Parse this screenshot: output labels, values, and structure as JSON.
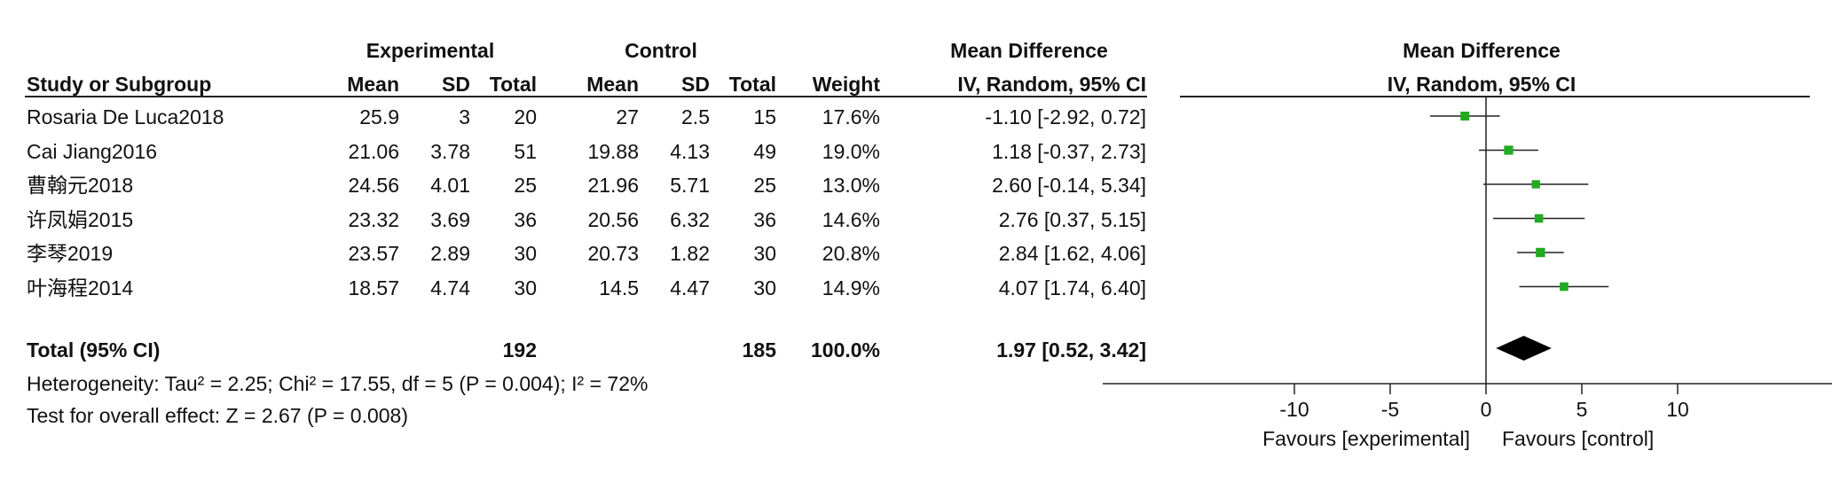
{
  "header": {
    "experimental": "Experimental",
    "control": "Control",
    "mean_difference": "Mean Difference",
    "study_or_subgroup": "Study or Subgroup",
    "mean": "Mean",
    "sd": "SD",
    "total": "Total",
    "weight": "Weight",
    "iv_random": "IV, Random, 95% CI",
    "plot_mean_difference": "Mean Difference",
    "plot_iv_random": "IV, Random, 95% CI"
  },
  "studies": [
    {
      "name": "Rosaria De Luca2018",
      "e_mean": "25.9",
      "e_sd": "3",
      "e_total": "20",
      "c_mean": "27",
      "c_sd": "2.5",
      "c_total": "15",
      "weight": "17.6%",
      "ci": "-1.10 [-2.92, 0.72]"
    },
    {
      "name": "Cai Jiang2016",
      "e_mean": "21.06",
      "e_sd": "3.78",
      "e_total": "51",
      "c_mean": "19.88",
      "c_sd": "4.13",
      "c_total": "49",
      "weight": "19.0%",
      "ci": "1.18 [-0.37, 2.73]"
    },
    {
      "name": "曹翰元2018",
      "e_mean": "24.56",
      "e_sd": "4.01",
      "e_total": "25",
      "c_mean": "21.96",
      "c_sd": "5.71",
      "c_total": "25",
      "weight": "13.0%",
      "ci": "2.60 [-0.14, 5.34]"
    },
    {
      "name": "许凤娟2015",
      "e_mean": "23.32",
      "e_sd": "3.69",
      "e_total": "36",
      "c_mean": "20.56",
      "c_sd": "6.32",
      "c_total": "36",
      "weight": "14.6%",
      "ci": "2.76 [0.37, 5.15]"
    },
    {
      "name": "李琴2019",
      "e_mean": "23.57",
      "e_sd": "2.89",
      "e_total": "30",
      "c_mean": "20.73",
      "c_sd": "1.82",
      "c_total": "30",
      "weight": "20.8%",
      "ci": "2.84 [1.62, 4.06]"
    },
    {
      "name": "叶海程2014",
      "e_mean": "18.57",
      "e_sd": "4.74",
      "e_total": "30",
      "c_mean": "14.5",
      "c_sd": "4.47",
      "c_total": "30",
      "weight": "14.9%",
      "ci": "4.07 [1.74, 6.40]"
    }
  ],
  "total": {
    "label": "Total (95% CI)",
    "e_total": "192",
    "c_total": "185",
    "weight": "100.0%",
    "ci": "1.97 [0.52, 3.42]"
  },
  "heterogeneity": "Heterogeneity: Tau² = 2.25; Chi² = 17.55, df = 5 (P = 0.004); I² = 72%",
  "overall_effect": "Test for overall effect: Z = 2.67 (P = 0.008)",
  "chart_data": {
    "type": "forest",
    "x_range": [
      -20,
      20
    ],
    "x_ticks": [
      "-10",
      "-5",
      "0",
      "5",
      "10"
    ],
    "x_tick_values": [
      -10,
      -5,
      0,
      5,
      10
    ],
    "favours_left": "Favours [experimental]",
    "favours_right": "Favours [control]",
    "marker_color": "#22aa22",
    "points": [
      {
        "study": "Rosaria De Luca2018",
        "md": -1.1,
        "lower": -2.92,
        "upper": 0.72,
        "weight": 17.6
      },
      {
        "study": "Cai Jiang2016",
        "md": 1.18,
        "lower": -0.37,
        "upper": 2.73,
        "weight": 19.0
      },
      {
        "study": "曹翰元2018",
        "md": 2.6,
        "lower": -0.14,
        "upper": 5.34,
        "weight": 13.0
      },
      {
        "study": "许凤娟2015",
        "md": 2.76,
        "lower": 0.37,
        "upper": 5.15,
        "weight": 14.6
      },
      {
        "study": "李琴2019",
        "md": 2.84,
        "lower": 1.62,
        "upper": 4.06,
        "weight": 20.8
      },
      {
        "study": "叶海程2014",
        "md": 4.07,
        "lower": 1.74,
        "upper": 6.4,
        "weight": 14.9
      }
    ],
    "pooled": {
      "md": 1.97,
      "lower": 0.52,
      "upper": 3.42
    }
  }
}
